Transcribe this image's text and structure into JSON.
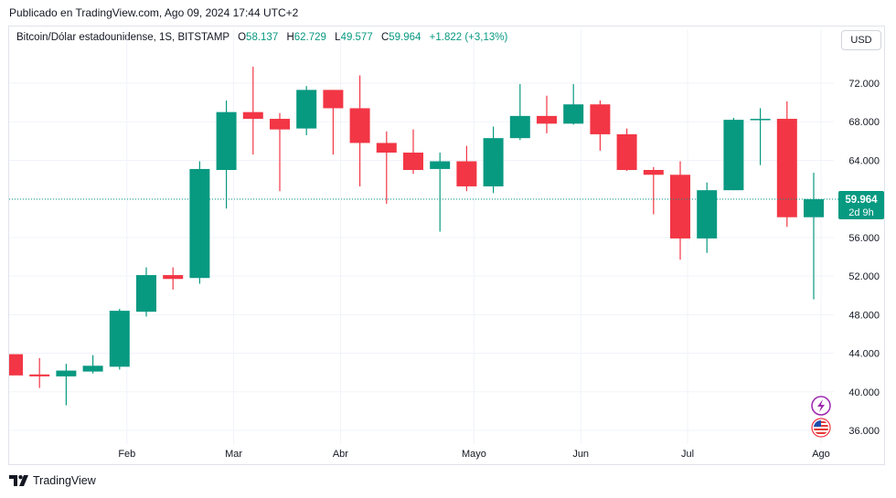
{
  "header": {
    "published": "Publicado en TradingView.com, Ago 09, 2024 17:44 UTC+2"
  },
  "legend": {
    "symbol": "Bitcoin/Dólar estadounidense, 1S, BITSTAMP",
    "o_label": "O",
    "o_value": "58.137",
    "h_label": "H",
    "h_value": "62.729",
    "l_label": "L",
    "l_value": "49.577",
    "c_label": "C",
    "c_value": "59.964",
    "change": "+1.822 (+3,13%)"
  },
  "currency_button": "USD",
  "footer": {
    "brand": "TradingView"
  },
  "price_label": {
    "value": "59.964",
    "countdown": "2d 9h"
  },
  "colors": {
    "up": "#089981",
    "down": "#f23645",
    "grid": "#f0f3fa",
    "last_line": "#089981",
    "icon_bolt": "#9c27b0"
  },
  "icons": [
    "lightning-icon",
    "us-flag-icon",
    "tradingview-logo-icon"
  ],
  "chart_data": {
    "type": "candlestick",
    "ylim": [
      33000,
      77000
    ],
    "y_ticks": [
      36000,
      40000,
      44000,
      48000,
      52000,
      56000,
      60000,
      64000,
      68000,
      72000
    ],
    "y_tick_labels": [
      "36.000",
      "40.000",
      "44.000",
      "48.000",
      "52.000",
      "56.000",
      "60.000",
      "64.000",
      "68.000",
      "72.000"
    ],
    "x_labels": [
      {
        "label": "Feb",
        "index": 4
      },
      {
        "label": "Mar",
        "index": 8
      },
      {
        "label": "Abr",
        "index": 12
      },
      {
        "label": "Mayo",
        "index": 17
      },
      {
        "label": "Jun",
        "index": 21
      },
      {
        "label": "Jul",
        "index": 25
      },
      {
        "label": "Ago",
        "index": 30
      }
    ],
    "last_price": 59964,
    "candles": [
      {
        "o": 43900,
        "h": 43900,
        "l": 41700,
        "c": 41700
      },
      {
        "o": 41800,
        "h": 43500,
        "l": 40400,
        "c": 41600
      },
      {
        "o": 41600,
        "h": 42900,
        "l": 38600,
        "c": 42200
      },
      {
        "o": 42100,
        "h": 43800,
        "l": 41900,
        "c": 42700
      },
      {
        "o": 42600,
        "h": 48600,
        "l": 42300,
        "c": 48400
      },
      {
        "o": 48300,
        "h": 52900,
        "l": 47800,
        "c": 52100
      },
      {
        "o": 52100,
        "h": 52900,
        "l": 50600,
        "c": 51700
      },
      {
        "o": 51800,
        "h": 63900,
        "l": 51200,
        "c": 63100
      },
      {
        "o": 63000,
        "h": 70200,
        "l": 59000,
        "c": 69000
      },
      {
        "o": 69000,
        "h": 73700,
        "l": 64600,
        "c": 68300
      },
      {
        "o": 68300,
        "h": 68900,
        "l": 60800,
        "c": 67200
      },
      {
        "o": 67300,
        "h": 71700,
        "l": 66600,
        "c": 71300
      },
      {
        "o": 71300,
        "h": 71300,
        "l": 64600,
        "c": 69400
      },
      {
        "o": 69400,
        "h": 72800,
        "l": 61300,
        "c": 65800
      },
      {
        "o": 65800,
        "h": 67000,
        "l": 59500,
        "c": 64800
      },
      {
        "o": 64800,
        "h": 67200,
        "l": 62600,
        "c": 63000
      },
      {
        "o": 63100,
        "h": 64800,
        "l": 56600,
        "c": 63900
      },
      {
        "o": 63900,
        "h": 65500,
        "l": 60800,
        "c": 61300
      },
      {
        "o": 61300,
        "h": 67500,
        "l": 60600,
        "c": 66300
      },
      {
        "o": 66300,
        "h": 71900,
        "l": 66100,
        "c": 68600
      },
      {
        "o": 68600,
        "h": 70700,
        "l": 66800,
        "c": 67800
      },
      {
        "o": 67800,
        "h": 71900,
        "l": 67700,
        "c": 69800
      },
      {
        "o": 69800,
        "h": 70200,
        "l": 65000,
        "c": 66700
      },
      {
        "o": 66700,
        "h": 67300,
        "l": 62900,
        "c": 63000
      },
      {
        "o": 63000,
        "h": 63300,
        "l": 58400,
        "c": 62500
      },
      {
        "o": 62500,
        "h": 63900,
        "l": 53700,
        "c": 55900
      },
      {
        "o": 55900,
        "h": 61700,
        "l": 54400,
        "c": 60900
      },
      {
        "o": 60900,
        "h": 68400,
        "l": 60900,
        "c": 68200
      },
      {
        "o": 68200,
        "h": 69400,
        "l": 63500,
        "c": 68300
      },
      {
        "o": 68300,
        "h": 70100,
        "l": 57100,
        "c": 58100
      },
      {
        "o": 58100,
        "h": 62700,
        "l": 49600,
        "c": 59964
      }
    ]
  }
}
